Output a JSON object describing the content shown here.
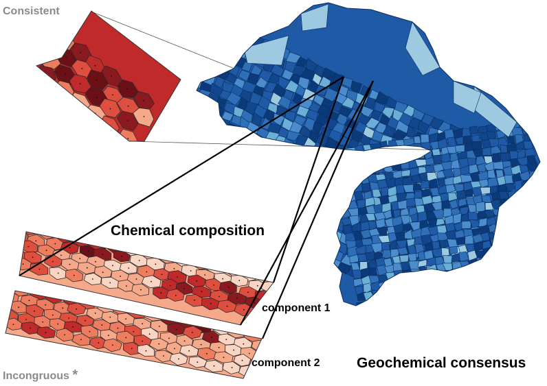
{
  "labels": {
    "consistent": "Consistent",
    "incongruous": "Incongruous",
    "incongruous_marker": "*",
    "chemical_composition": "Chemical composition",
    "component_1": "component 1",
    "component_2": "component 2",
    "geochemical_consensus": "Geochemical consensus"
  },
  "colors": {
    "reds": [
      "#fbd5c3",
      "#f6a88a",
      "#ee7d60",
      "#df4f3f",
      "#c02a2a",
      "#8a1a1f",
      "#6b1016"
    ],
    "blues": [
      "#9ecae1",
      "#6baed6",
      "#4a8ccc",
      "#2f6fb8",
      "#1f5aa6",
      "#12468d",
      "#0b3a7a"
    ],
    "gray_text": "#8a8a8a"
  },
  "panels": {
    "consistent_map": {
      "name": "consistent-cluster",
      "palette": "reds",
      "intensity": "high"
    },
    "component_1_strip": {
      "name": "component-1-strip",
      "palette": "reds",
      "intensity": "mixed"
    },
    "component_2_strip": {
      "name": "component-2-strip",
      "palette": "reds",
      "intensity": "mixed"
    },
    "blue_map": {
      "name": "geochemical-consensus-map",
      "palette": "blues"
    }
  }
}
